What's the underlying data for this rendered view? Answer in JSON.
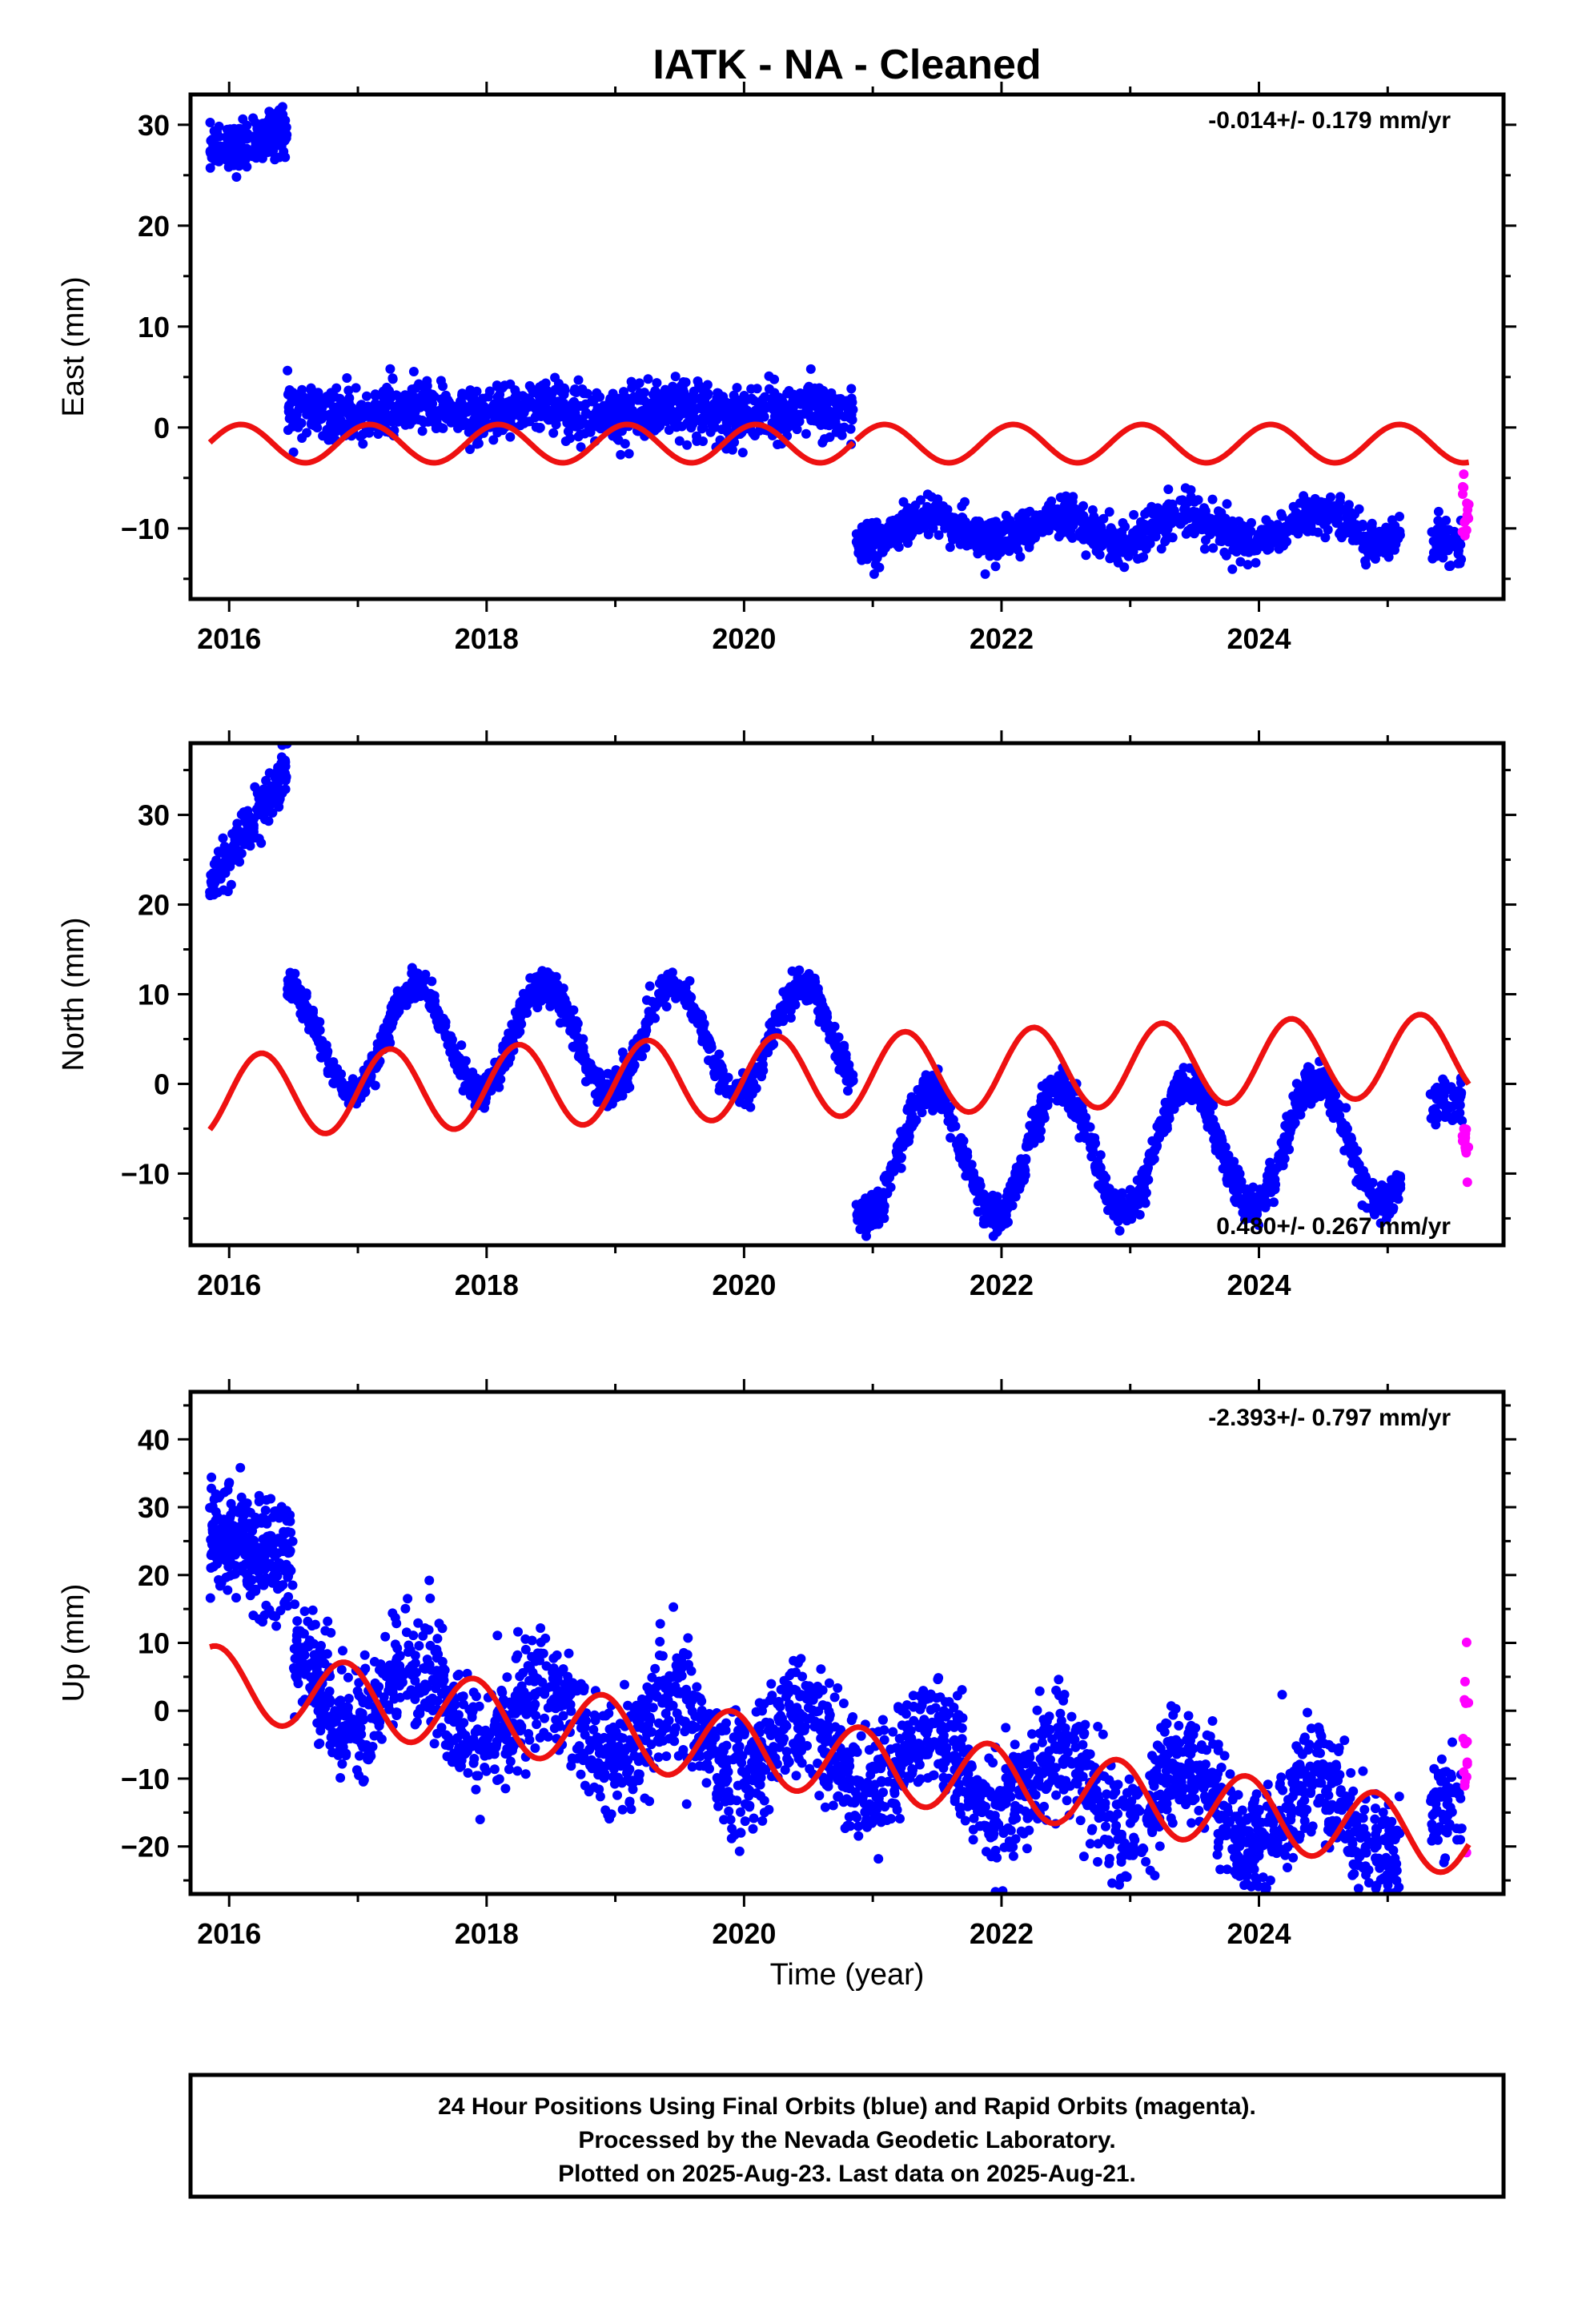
{
  "figure": {
    "title": "IATK  - NA - Cleaned",
    "xlabel": "Time (year)",
    "footer": [
      "24 Hour Positions Using Final Orbits (blue) and Rapid Orbits (magenta).",
      "Processed by the Nevada Geodetic Laboratory.",
      "Plotted on 2025-Aug-23. Last data on 2025-Aug-21."
    ]
  },
  "colors": {
    "final_orbits": "#0000ff",
    "rapid_orbits": "#ff00ff",
    "model": "#ee1111"
  },
  "chart_data": [
    {
      "type": "scatter",
      "component": "east",
      "ylabel": "East (mm)",
      "rate_label": "-0.014+/- 0.179 mm/yr",
      "rate_position": "top-right",
      "xlim": [
        2015.7,
        2025.9
      ],
      "ylim": [
        -17,
        33
      ],
      "xticks": [
        2016,
        2018,
        2020,
        2022,
        2024
      ],
      "yticks": [
        -10,
        0,
        10,
        20,
        30
      ],
      "grid": false,
      "series": [
        {
          "role": "final_orbits",
          "segments": [
            {
              "x_start": 2015.85,
              "x_end": 2016.45,
              "mean": 28.5,
              "scatter": 1.2,
              "amp": 1.0,
              "count": 180
            },
            {
              "x_start": 2016.45,
              "x_end": 2020.85,
              "mean": 1.5,
              "scatter": 1.3,
              "amp": 0.6,
              "count": 1200
            },
            {
              "x_start": 2020.87,
              "x_end": 2025.1,
              "mean": -10.0,
              "scatter": 1.0,
              "amp": 1.3,
              "count": 1150
            },
            {
              "x_start": 2025.33,
              "x_end": 2025.58,
              "mean": -11.5,
              "scatter": 1.5,
              "amp": 0,
              "count": 60
            }
          ]
        },
        {
          "role": "rapid_orbits",
          "segments": [
            {
              "x_start": 2025.58,
              "x_end": 2025.63,
              "mean": -8.0,
              "scatter": 1.8,
              "amp": 0,
              "count": 15
            }
          ]
        },
        {
          "role": "model",
          "segments": [
            {
              "x_start": 2015.85,
              "x_end": 2020.85,
              "mean": -1.6,
              "trend": 0.0,
              "amp": 1.9,
              "phase": 1.0
            },
            {
              "x_start": 2020.87,
              "x_end": 2025.63,
              "mean": -1.6,
              "trend": 0.0,
              "amp": 1.9,
              "phase": 1.0
            }
          ]
        }
      ]
    },
    {
      "type": "scatter",
      "component": "north",
      "ylabel": "North (mm)",
      "rate_label": "0.480+/- 0.267 mm/yr",
      "rate_position": "bottom-right",
      "xlim": [
        2015.7,
        2025.9
      ],
      "ylim": [
        -18,
        38
      ],
      "xticks": [
        2016,
        2018,
        2020,
        2022,
        2024
      ],
      "yticks": [
        -10,
        0,
        10,
        20,
        30
      ],
      "grid": false,
      "series": [
        {
          "role": "final_orbits",
          "segments": [
            {
              "x_start": 2015.85,
              "x_end": 2016.45,
              "mean": 22,
              "trend": 22,
              "scatter": 1.3,
              "amp": 0,
              "count": 180
            },
            {
              "x_start": 2016.45,
              "x_end": 2020.85,
              "mean": 5.0,
              "trend": 0.0,
              "scatter": 0.9,
              "amp": 6.0,
              "count": 1300
            },
            {
              "x_start": 2020.87,
              "x_end": 2025.1,
              "mean": -8.0,
              "trend": 0.4,
              "scatter": 1.0,
              "amp": 7.0,
              "count": 1250
            },
            {
              "x_start": 2025.33,
              "x_end": 2025.58,
              "mean": -2.0,
              "trend": 0.0,
              "scatter": 1.2,
              "amp": 0,
              "count": 60
            }
          ]
        },
        {
          "role": "rapid_orbits",
          "segments": [
            {
              "x_start": 2025.58,
              "x_end": 2025.63,
              "mean": -6.5,
              "trend": 0.0,
              "scatter": 1.8,
              "amp": 0,
              "count": 15
            }
          ]
        },
        {
          "role": "model",
          "segments": [
            {
              "x_start": 2015.85,
              "x_end": 2025.63,
              "mean": -1.3,
              "trend": 0.48,
              "amp": 4.6,
              "phase": 0
            }
          ]
        }
      ]
    },
    {
      "type": "scatter",
      "component": "up",
      "ylabel": "Up (mm)",
      "rate_label": "-2.393+/- 0.797 mm/yr",
      "rate_position": "top-right",
      "xlim": [
        2015.7,
        2025.9
      ],
      "ylim": [
        -27,
        47
      ],
      "xticks": [
        2016,
        2018,
        2020,
        2022,
        2024
      ],
      "yticks": [
        -20,
        -10,
        0,
        10,
        20,
        30,
        40
      ],
      "grid": false,
      "series": [
        {
          "role": "final_orbits",
          "segments": [
            {
              "x_start": 2015.85,
              "x_end": 2016.5,
              "mean": 27,
              "trend": -10,
              "scatter": 4.0,
              "amp": 0,
              "count": 300
            },
            {
              "x_start": 2016.5,
              "x_end": 2025.1,
              "mean": 3.5,
              "trend": -2.4,
              "scatter": 4.2,
              "amp": 5.5,
              "count": 2600
            },
            {
              "x_start": 2025.33,
              "x_end": 2025.58,
              "mean": -13.5,
              "trend": 0.0,
              "scatter": 4.0,
              "amp": 0,
              "count": 70
            }
          ]
        },
        {
          "role": "rapid_orbits",
          "segments": [
            {
              "x_start": 2025.58,
              "x_end": 2025.63,
              "mean": -3.0,
              "trend": 0.0,
              "scatter": 7.0,
              "amp": 0,
              "count": 15
            }
          ]
        },
        {
          "role": "model",
          "segments": [
            {
              "x_start": 2015.85,
              "x_end": 2025.63,
              "mean": 4.0,
              "trend": -2.393,
              "amp": 5.3,
              "phase": 2.2
            }
          ]
        }
      ]
    }
  ]
}
